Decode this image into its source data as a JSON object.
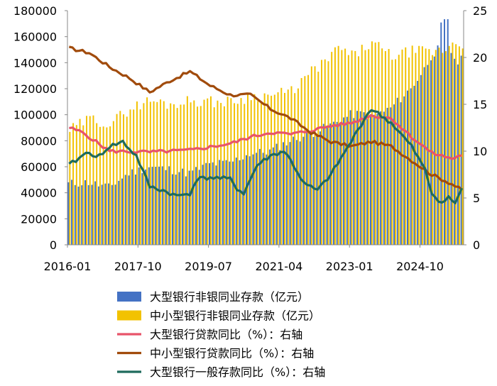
{
  "chart_data": {
    "type": "bar+line",
    "title": "",
    "xlabel": "",
    "ylabel_left": "",
    "ylabel_right": "",
    "y_left_lim": [
      0,
      180000
    ],
    "y_left_ticks": [
      "0",
      "20000",
      "40000",
      "60000",
      "80000",
      "100000",
      "120000",
      "140000",
      "160000",
      "180000"
    ],
    "y_right_lim": [
      0,
      25
    ],
    "y_right_ticks": [
      "0",
      "5",
      "10",
      "15",
      "20",
      "25"
    ],
    "x_tick_labels": [
      "2016-01",
      "2017-10",
      "2019-07",
      "2021-04",
      "2023-01",
      "2024-10"
    ],
    "x_tick_indices": [
      0,
      21,
      42,
      63,
      84,
      105
    ],
    "grid": false,
    "legend_position": "bottom",
    "colors": {
      "large_bank_nonbank_deposits": "#4472c4",
      "small_mid_bank_nonbank_deposits": "#f2c200",
      "large_bank_loan_yoy": "#e8546a",
      "small_mid_bank_loan_yoy": "#a14b0c",
      "large_bank_general_deposit_yoy": "#1f6b5c"
    },
    "bar_series": [
      {
        "name": "大型银行非银同业存款（亿元）",
        "color": "#4472c4",
        "anchors": [
          [
            0,
            47000
          ],
          [
            6,
            48000
          ],
          [
            12,
            44000
          ],
          [
            18,
            55000
          ],
          [
            24,
            60000
          ],
          [
            30,
            58000
          ],
          [
            36,
            55000
          ],
          [
            42,
            62000
          ],
          [
            48,
            63000
          ],
          [
            54,
            70000
          ],
          [
            60,
            72000
          ],
          [
            66,
            80000
          ],
          [
            72,
            85000
          ],
          [
            78,
            92000
          ],
          [
            84,
            100000
          ],
          [
            88,
            101000
          ],
          [
            90,
            98000
          ],
          [
            96,
            105000
          ],
          [
            102,
            120000
          ],
          [
            106,
            135000
          ],
          [
            108,
            145000
          ],
          [
            110,
            150000
          ],
          [
            111,
            168000
          ],
          [
            112,
            171000
          ],
          [
            113,
            171000
          ],
          [
            114,
            148000
          ],
          [
            116,
            140000
          ],
          [
            117,
            142000
          ]
        ]
      },
      {
        "name": "中小型银行非银同业存款（亿元）",
        "color": "#f2c200",
        "anchors": [
          [
            0,
            88000
          ],
          [
            6,
            97000
          ],
          [
            12,
            93000
          ],
          [
            18,
            105000
          ],
          [
            24,
            111000
          ],
          [
            30,
            108000
          ],
          [
            36,
            111000
          ],
          [
            42,
            110000
          ],
          [
            48,
            110000
          ],
          [
            54,
            114000
          ],
          [
            60,
            115000
          ],
          [
            66,
            118000
          ],
          [
            72,
            133000
          ],
          [
            78,
            145000
          ],
          [
            80,
            152000
          ],
          [
            84,
            145000
          ],
          [
            90,
            155000
          ],
          [
            96,
            145000
          ],
          [
            102,
            149000
          ],
          [
            108,
            148000
          ],
          [
            112,
            150000
          ],
          [
            114,
            156000
          ],
          [
            117,
            154000
          ]
        ]
      }
    ],
    "line_series": [
      {
        "name": "大型银行贷款同比（%）：右轴",
        "color": "#e8546a",
        "anchors": [
          [
            0,
            12.5
          ],
          [
            4,
            12.0
          ],
          [
            8,
            11.0
          ],
          [
            12,
            10.0
          ],
          [
            24,
            9.9
          ],
          [
            36,
            10.1
          ],
          [
            48,
            10.8
          ],
          [
            54,
            11.5
          ],
          [
            60,
            12.0
          ],
          [
            66,
            11.8
          ],
          [
            72,
            12.2
          ],
          [
            78,
            12.7
          ],
          [
            84,
            13.0
          ],
          [
            90,
            13.8
          ],
          [
            96,
            13.5
          ],
          [
            102,
            11.5
          ],
          [
            108,
            9.8
          ],
          [
            114,
            9.2
          ],
          [
            117,
            9.6
          ]
        ]
      },
      {
        "name": "中小型银行贷款同比（%）：右轴",
        "color": "#a14b0c",
        "anchors": [
          [
            0,
            21.0
          ],
          [
            6,
            20.5
          ],
          [
            12,
            19.0
          ],
          [
            18,
            17.8
          ],
          [
            24,
            16.3
          ],
          [
            30,
            17.5
          ],
          [
            36,
            18.5
          ],
          [
            42,
            17.0
          ],
          [
            48,
            16.0
          ],
          [
            54,
            16.0
          ],
          [
            60,
            14.5
          ],
          [
            66,
            13.5
          ],
          [
            72,
            12.0
          ],
          [
            78,
            11.0
          ],
          [
            84,
            10.5
          ],
          [
            90,
            11.0
          ],
          [
            96,
            10.5
          ],
          [
            102,
            9.0
          ],
          [
            108,
            7.5
          ],
          [
            114,
            6.5
          ],
          [
            117,
            5.8
          ]
        ]
      },
      {
        "name": "大型银行一般存款同比（%）：右轴",
        "color": "#1f6b5c",
        "anchors": [
          [
            0,
            8.5
          ],
          [
            4,
            9.5
          ],
          [
            6,
            10.0
          ],
          [
            8,
            9.2
          ],
          [
            12,
            10.5
          ],
          [
            16,
            11.0
          ],
          [
            18,
            10.2
          ],
          [
            20,
            9.5
          ],
          [
            24,
            6.2
          ],
          [
            28,
            5.8
          ],
          [
            32,
            5.2
          ],
          [
            36,
            5.5
          ],
          [
            38,
            7.0
          ],
          [
            42,
            7.2
          ],
          [
            48,
            7.0
          ],
          [
            50,
            6.0
          ],
          [
            52,
            5.5
          ],
          [
            56,
            8.5
          ],
          [
            60,
            9.5
          ],
          [
            64,
            10.0
          ],
          [
            66,
            9.0
          ],
          [
            70,
            6.5
          ],
          [
            74,
            5.8
          ],
          [
            78,
            7.5
          ],
          [
            84,
            11.0
          ],
          [
            88,
            13.5
          ],
          [
            90,
            14.5
          ],
          [
            96,
            13.0
          ],
          [
            102,
            10.5
          ],
          [
            106,
            8.0
          ],
          [
            108,
            5.5
          ],
          [
            111,
            4.5
          ],
          [
            113,
            5.0
          ],
          [
            115,
            4.5
          ],
          [
            117,
            6.0
          ]
        ]
      }
    ]
  }
}
